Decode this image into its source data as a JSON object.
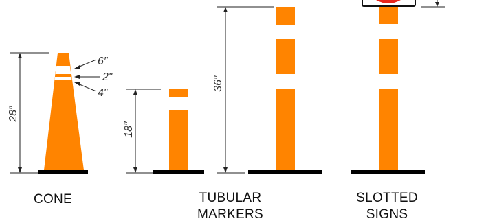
{
  "colors": {
    "orange": "#ff8400",
    "reflective": "#ffffff",
    "base": "#000000",
    "dimension_line": "#222222",
    "sign_red": "#e8261c"
  },
  "devices": {
    "cone": {
      "label": "CONE",
      "height_label": "28″",
      "band_labels": [
        "6″",
        "2″",
        "4″"
      ]
    },
    "tubular": {
      "label_line1": "TUBULAR",
      "label_line2": "MARKERS",
      "short_height_label": "18″",
      "tall_height_label": "36″"
    },
    "slotted": {
      "label_line1": "SLOTTED",
      "label_line2": "SIGNS"
    }
  }
}
